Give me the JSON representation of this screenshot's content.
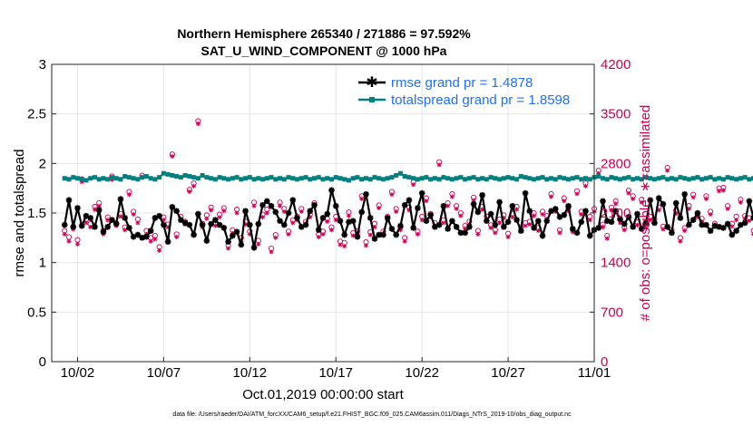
{
  "chart_data": {
    "type": "line",
    "title": "Northern Hemisphere 265340 / 271886 = 97.592%",
    "subtitle": "SAT_U_WIND_COMPONENT @ 1000 hPa",
    "xlabel": "Oct.01,2019 00:00:00 start",
    "ylabel": "rmse and totalspread",
    "ylabel_right": "# of obs: o=possible; ∗=assimilated",
    "footnote": "data file: /Users/raeder/DAI/ATM_forcXX/CAM6_setup/f.e21.FHIST_BGC.f09_025.CAM6assim.011/Diags_NTrS_2019-10/obs_diag_output.nc",
    "x_ticks": [
      "10/02",
      "10/07",
      "10/12",
      "10/17",
      "10/22",
      "10/27",
      "11/01"
    ],
    "x_tick_days": [
      2,
      7,
      12,
      17,
      22,
      27,
      32
    ],
    "xlim": [
      0.5,
      32
    ],
    "y_ticks": [
      "0",
      "0.5",
      "1",
      "1.5",
      "2",
      "2.5",
      "3"
    ],
    "ylim": [
      0,
      3
    ],
    "y2_ticks": [
      "0",
      "700",
      "1400",
      "2100",
      "2800",
      "3500",
      "4200"
    ],
    "y2lim": [
      0,
      4200
    ],
    "legend_location": "top-right",
    "colors": {
      "rmse": "#000000",
      "spread": "#008080",
      "obs": "#cc0055",
      "grid": "#e6e6e6",
      "legend_text": "#1f6fff"
    },
    "series": [
      {
        "name": "rmse grand pr = 1.4878",
        "x_start": 1.25,
        "x_step": 0.25,
        "values": [
          1.38,
          1.63,
          1.36,
          1.55,
          1.37,
          1.47,
          1.45,
          1.36,
          1.53,
          1.31,
          1.36,
          1.43,
          1.39,
          1.64,
          1.45,
          1.35,
          1.26,
          1.28,
          1.25,
          1.26,
          1.32,
          1.45,
          1.47,
          1.38,
          1.21,
          1.56,
          1.52,
          1.43,
          1.4,
          1.38,
          1.28,
          1.49,
          1.38,
          1.22,
          1.39,
          1.43,
          1.38,
          1.35,
          1.21,
          1.27,
          1.31,
          1.18,
          1.52,
          1.38,
          1.15,
          1.39,
          1.58,
          1.62,
          1.57,
          1.51,
          1.42,
          1.38,
          1.5,
          1.63,
          1.45,
          1.36,
          1.38,
          1.52,
          1.58,
          1.33,
          1.45,
          1.49,
          1.73,
          1.57,
          1.42,
          1.28,
          1.41,
          1.42,
          1.26,
          1.51,
          1.69,
          1.45,
          1.24,
          1.28,
          1.28,
          1.45,
          1.34,
          1.28,
          1.37,
          1.58,
          1.63,
          1.35,
          1.55,
          1.7,
          1.42,
          1.48,
          1.36,
          1.38,
          1.57,
          1.34,
          1.42,
          1.36,
          1.3,
          1.3,
          1.36,
          1.59,
          1.51,
          1.68,
          1.42,
          1.49,
          1.38,
          1.61,
          1.36,
          1.41,
          1.57,
          1.43,
          1.32,
          1.7,
          1.52,
          1.35,
          1.42,
          1.27,
          1.42,
          1.52,
          1.54,
          1.46,
          1.48,
          1.57,
          1.34,
          1.3,
          1.41,
          1.52,
          1.27,
          1.33,
          1.35,
          1.62,
          1.42,
          1.41,
          1.52,
          1.44,
          1.39,
          1.46,
          1.36,
          1.49,
          1.34,
          1.4,
          1.63,
          1.4,
          1.65,
          1.59,
          1.36,
          1.3,
          1.6,
          1.45,
          1.69,
          1.38,
          1.43,
          1.5,
          1.38,
          1.38,
          1.32,
          1.37,
          1.36,
          1.35,
          1.39,
          1.28,
          1.32,
          1.38,
          1.4,
          1.62,
          1.45,
          1.31,
          1.44,
          1.45,
          1.42,
          1.44,
          1.57,
          1.72,
          1.6,
          1.64,
          1.7,
          1.56,
          1.64,
          1.75,
          1.62,
          1.68,
          1.57,
          1.8,
          1.63,
          1.52,
          1.4,
          1.45,
          1.55,
          1.67,
          1.64,
          1.38,
          1.29,
          1.39,
          1.5,
          1.25,
          1.42,
          1.5,
          1.45,
          1.57,
          1.5,
          1.48,
          1.41,
          1.72,
          1.68,
          1.88,
          1.65,
          1.74,
          1.58,
          1.93,
          2.12,
          1.6,
          1.7,
          1.54,
          1.4,
          1.28,
          1.52,
          1.5,
          1.43,
          1.42
        ]
      },
      {
        "name": "totalspread grand pr = 1.8598",
        "x_start": 1.25,
        "x_step": 0.25,
        "values": [
          1.85,
          1.84,
          1.86,
          1.85,
          1.84,
          1.83,
          1.85,
          1.86,
          1.84,
          1.85,
          1.84,
          1.86,
          1.85,
          1.84,
          1.87,
          1.86,
          1.85,
          1.84,
          1.86,
          1.87,
          1.85,
          1.84,
          1.86,
          1.9,
          1.89,
          1.88,
          1.87,
          1.86,
          1.88,
          1.87,
          1.86,
          1.85,
          1.88,
          1.86,
          1.85,
          1.84,
          1.86,
          1.85,
          1.84,
          1.85,
          1.86,
          1.84,
          1.85,
          1.86,
          1.84,
          1.85,
          1.84,
          1.85,
          1.86,
          1.84,
          1.85,
          1.84,
          1.86,
          1.85,
          1.84,
          1.85,
          1.86,
          1.84,
          1.85,
          1.86,
          1.84,
          1.85,
          1.84,
          1.86,
          1.85,
          1.84,
          1.83,
          1.85,
          1.86,
          1.84,
          1.85,
          1.84,
          1.86,
          1.85,
          1.84,
          1.85,
          1.86,
          1.88,
          1.9,
          1.87,
          1.86,
          1.85,
          1.84,
          1.85,
          1.86,
          1.84,
          1.85,
          1.84,
          1.86,
          1.85,
          1.84,
          1.85,
          1.86,
          1.84,
          1.85,
          1.86,
          1.84,
          1.85,
          1.84,
          1.86,
          1.85,
          1.84,
          1.85,
          1.86,
          1.85,
          1.84,
          1.87,
          1.86,
          1.85,
          1.84,
          1.85,
          1.86,
          1.84,
          1.85,
          1.84,
          1.86,
          1.85,
          1.84,
          1.85,
          1.86,
          1.84,
          1.85,
          1.84,
          1.86,
          1.87,
          1.85,
          1.84,
          1.86,
          1.85,
          1.84,
          1.85,
          1.86,
          1.84,
          1.85,
          1.84,
          1.86,
          1.85,
          1.84,
          1.85,
          1.86,
          1.84,
          1.85,
          1.84,
          1.86,
          1.85,
          1.84,
          1.85,
          1.86,
          1.84,
          1.85,
          1.86,
          1.84,
          1.85,
          1.84,
          1.86,
          1.85,
          1.84,
          1.85,
          1.86,
          1.84,
          1.85,
          1.84,
          1.86,
          1.85,
          1.84,
          1.85,
          1.86,
          1.84,
          1.85,
          1.86,
          1.84,
          1.85,
          1.84,
          1.86,
          1.85,
          1.84,
          1.85,
          1.86,
          1.84,
          1.85,
          1.84,
          1.86,
          1.85,
          1.84,
          1.85,
          1.86,
          1.84,
          1.85,
          1.84,
          1.86,
          1.85,
          1.84,
          1.85,
          1.86,
          1.84,
          1.85,
          1.86,
          1.84,
          1.85,
          1.84,
          1.86,
          1.85,
          1.84,
          1.85,
          1.86,
          1.84,
          1.85,
          1.88,
          1.9,
          1.87,
          2.02,
          1.87,
          1.88,
          1.93,
          1.91,
          1.88,
          1.87,
          1.92,
          1.9,
          1.88
        ]
      }
    ],
    "obs_possible": {
      "name": "possible",
      "x_start": 1.25,
      "x_step": 0.25,
      "values": [
        1850,
        1760,
        1900,
        1720,
        2580,
        2010,
        1950,
        2190,
        2240,
        1850,
        2040,
        2620,
        1960,
        2090,
        1900,
        2400,
        2120,
        2010,
        2630,
        1850,
        1750,
        1780,
        1620,
        2040,
        1940,
        2930,
        1800,
        2050,
        1980,
        2430,
        2520,
        3400,
        1950,
        2070,
        2180,
        1960,
        2080,
        2170,
        1640,
        1860,
        2150,
        1750,
        1980,
        1840,
        2250,
        1710,
        2080,
        2150,
        1600,
        1790,
        2250,
        2160,
        1840,
        2000,
        2050,
        2160,
        1980,
        2080,
        2240,
        1800,
        1840,
        2020,
        1900,
        2050,
        1700,
        1680,
        2110,
        1820,
        1840,
        2340,
        1690,
        1830,
        1950,
        2210,
        1840,
        2050,
        2400,
        2160,
        1900,
        1750,
        2180,
        2540,
        1840,
        2050,
        2310,
        2090,
        1960,
        2820,
        2000,
        2240,
        2370,
        2200,
        2100,
        1920,
        1980,
        2320,
        1850,
        2190,
        2050,
        1930,
        1860,
        2010,
        2070,
        1810,
        2090,
        2190,
        1900,
        1960,
        1980,
        2100,
        1890,
        2120,
        2060,
        2370,
        2160,
        1860,
        2310,
        2180,
        1870,
        2410,
        2120,
        2520,
        2050,
        2160,
        2700,
        1940,
        1780,
        2180,
        2270,
        2010,
        1900,
        2420,
        2340,
        1970,
        2290,
        1930,
        2050,
        2010,
        2180,
        1910,
        2740,
        1860,
        2140,
        1750,
        1890,
        2200,
        2360,
        2080,
        2020,
        2340,
        2120,
        1950,
        2450,
        2460,
        2200,
        1950,
        2050,
        2290,
        2060,
        2030,
        1850,
        2470,
        1910,
        2310,
        2040,
        2190,
        1990,
        2260,
        2530,
        2210,
        2320,
        1970,
        2390,
        2080,
        2110,
        1830,
        2360,
        1850,
        2150,
        2010,
        1930,
        2170,
        2130,
        2460,
        1760,
        2060,
        2260,
        1870,
        2040,
        2470,
        1920,
        1960,
        1860,
        2060,
        1760,
        1860,
        1930,
        2070,
        1640,
        2250,
        2490,
        1830,
        1920,
        2720,
        2080,
        2440,
        2150,
        2260,
        1990,
        1810,
        1840,
        2260,
        1990,
        2650,
        2130,
        2180,
        1850,
        1960,
        1790,
        1950,
        2310,
        1940,
        2400
      ]
    },
    "obs_assimilated": {
      "name": "assimilated",
      "x_start": 1.25,
      "x_step": 0.25,
      "values": [
        1800,
        1700,
        1870,
        1660,
        2540,
        1960,
        1900,
        2150,
        2200,
        1800,
        2000,
        2570,
        1920,
        2050,
        1860,
        2360,
        2080,
        1960,
        2600,
        1800,
        1700,
        1730,
        1570,
        2000,
        1900,
        2900,
        1760,
        2000,
        1940,
        2400,
        2480,
        3360,
        1900,
        2020,
        2140,
        1920,
        2040,
        2130,
        1600,
        1810,
        2100,
        1700,
        1940,
        1800,
        2200,
        1660,
        2040,
        2100,
        1550,
        1750,
        2200,
        2120,
        1800,
        1960,
        2000,
        2120,
        1940,
        2040,
        2200,
        1760,
        1800,
        1980,
        1860,
        2000,
        1650,
        1630,
        2060,
        1780,
        1800,
        2300,
        1640,
        1790,
        1900,
        2170,
        1800,
        2000,
        2360,
        2120,
        1860,
        1700,
        2140,
        2500,
        1800,
        2000,
        2270,
        2040,
        1920,
        2780,
        1960,
        2200,
        2330,
        2160,
        2060,
        1880,
        1940,
        2280,
        1800,
        2150,
        2000,
        1890,
        1820,
        1960,
        2030,
        1760,
        2040,
        2150,
        1860,
        1920,
        1940,
        2060,
        1850,
        2080,
        2010,
        2330,
        2120,
        1820,
        2270,
        2130,
        1830,
        2370,
        2080,
        2480,
        2000,
        2120,
        2660,
        1900,
        1740,
        2140,
        2230,
        1960,
        1860,
        2380,
        2300,
        1930,
        2250,
        1890,
        2000,
        1960,
        2140,
        1870,
        2700,
        1810,
        2090,
        1700,
        1850,
        2160,
        2320,
        2040,
        1980,
        2300,
        2080,
        1910,
        2410,
        2420,
        2160,
        1910,
        2000,
        2250,
        2020,
        1990,
        1800,
        2430,
        1860,
        2270,
        2000,
        2150,
        1950,
        2220,
        2490,
        2170,
        2280,
        1930,
        2350,
        2040,
        2070,
        1790,
        2320,
        1800,
        2110,
        1960,
        1880,
        2130,
        2090,
        2420,
        1710,
        2020,
        2220,
        1830,
        2000,
        2430,
        1880,
        1910,
        1820,
        2020,
        1720,
        1820,
        1890,
        2030,
        1590,
        2210,
        2450,
        1790,
        1880,
        2680,
        2040,
        2400,
        2110,
        2220,
        1950,
        1770,
        1800,
        2220,
        1950,
        2610,
        2090,
        2140,
        1800,
        1920,
        1750,
        1910,
        2270,
        1900,
        2360
      ]
    }
  }
}
